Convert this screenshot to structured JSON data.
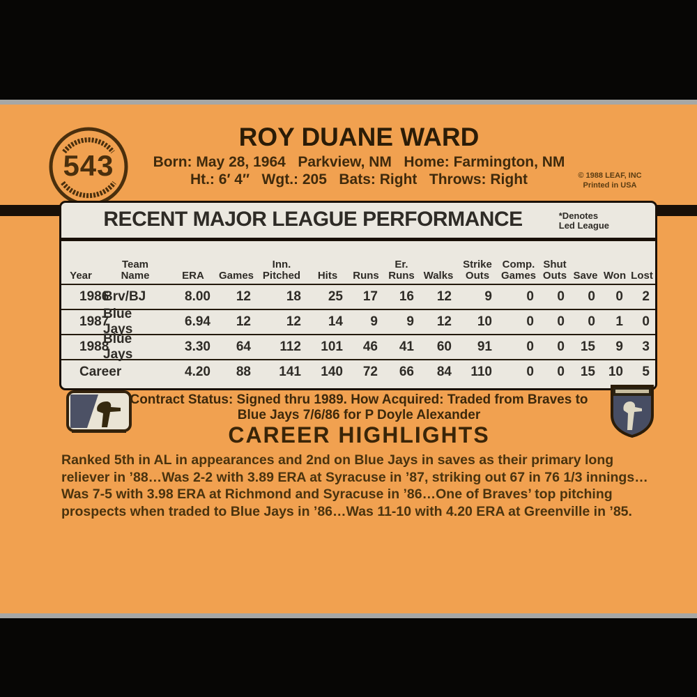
{
  "colors": {
    "card_orange": "#f1a150",
    "panel_bg": "#ebe8e0",
    "ink_dark_brown": "#3a2508",
    "band_black": "#070605",
    "silver_edge": "#a7a7a5"
  },
  "badge": {
    "card_number": "543"
  },
  "header": {
    "name": "ROY DUANE WARD",
    "bio_line1": "Born: May 28, 1964   Parkview, NM   Home: Farmington, NM",
    "bio_line2": "Ht.: 6′ 4″   Wgt.: 205   Bats: Right   Throws: Right",
    "copyright": "© 1988 LEAF, INC\nPrinted in USA"
  },
  "stats_panel": {
    "title": "RECENT MAJOR LEAGUE PERFORMANCE",
    "denotes_note": "*Denotes\nLed League",
    "columns": [
      [
        "Year"
      ],
      [
        "Team",
        "Name"
      ],
      [
        "ERA"
      ],
      [
        "Games"
      ],
      [
        "Inn.",
        "Pitched"
      ],
      [
        "Hits"
      ],
      [
        "Runs"
      ],
      [
        "Er.",
        "Runs"
      ],
      [
        "Walks"
      ],
      [
        "Strike",
        "Outs"
      ],
      [
        "Comp.",
        "Games"
      ],
      [
        "Shut",
        "Outs"
      ],
      [
        "Save"
      ],
      [
        "Won"
      ],
      [
        "Lost"
      ]
    ],
    "rows": [
      [
        "1986",
        "Brv/BJ",
        "8.00",
        "12",
        "18",
        "25",
        "17",
        "16",
        "12",
        "9",
        "0",
        "0",
        "0",
        "0",
        "2"
      ],
      [
        "1987",
        "Blue Jays",
        "6.94",
        "12",
        "12",
        "14",
        "9",
        "9",
        "12",
        "10",
        "0",
        "0",
        "0",
        "1",
        "0"
      ],
      [
        "1988",
        "Blue Jays",
        "3.30",
        "64",
        "112",
        "101",
        "46",
        "41",
        "60",
        "91",
        "0",
        "0",
        "15",
        "9",
        "3"
      ],
      [
        "Career",
        "",
        "4.20",
        "88",
        "141",
        "140",
        "72",
        "66",
        "84",
        "110",
        "0",
        "0",
        "15",
        "10",
        "5"
      ]
    ]
  },
  "contract": {
    "line1": "Contract Status: Signed thru 1989. How Acquired: Traded from Braves to",
    "line2": "Blue Jays 7/6/86 for P Doyle Alexander"
  },
  "highlights": {
    "title": "CAREER HIGHLIGHTS",
    "text": "Ranked 5th in AL in appearances and 2nd on Blue Jays in saves as their primary long reliever in ’88…Was 2-2 with 3.89 ERA at Syracuse in ’87, striking out 67 in 76 1/3 innings…Was 7-5 with 3.98 ERA at Richmond and Syracuse in ’86…One of Braves’ top pitching prospects when traded to Blue Jays in ’86…Was 11-10 with 4.20 ERA at Greenville in ’85."
  }
}
